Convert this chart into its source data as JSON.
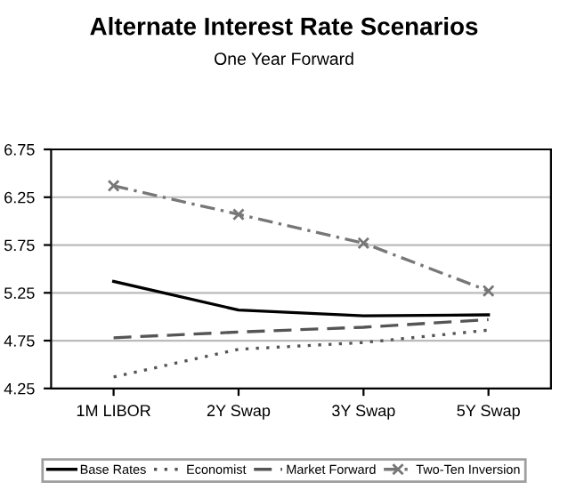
{
  "chart_data": {
    "type": "line",
    "title": "Alternate Interest Rate Scenarios",
    "subtitle": "One Year Forward",
    "categories": [
      "1M LIBOR",
      "2Y Swap",
      "3Y Swap",
      "5Y Swap"
    ],
    "series": [
      {
        "name": "Base Rates",
        "color": "#000000",
        "line_style": "solid",
        "marker": "none",
        "values": [
          5.37,
          5.07,
          5.01,
          5.02
        ]
      },
      {
        "name": "Economist",
        "color": "#555555",
        "line_style": "dotted",
        "marker": "none",
        "values": [
          4.37,
          4.66,
          4.73,
          4.86
        ]
      },
      {
        "name": "Market Forward",
        "color": "#555555",
        "line_style": "dashed",
        "marker": "none",
        "values": [
          4.78,
          4.84,
          4.89,
          4.97
        ]
      },
      {
        "name": "Two-Ten Inversion",
        "color": "#777777",
        "line_style": "dashdot",
        "marker": "cross",
        "values": [
          6.37,
          6.07,
          5.77,
          5.27
        ]
      }
    ],
    "ylim": [
      4.25,
      6.75
    ],
    "yticks": [
      4.25,
      4.75,
      5.25,
      5.75,
      6.25,
      6.75
    ],
    "grid": "y",
    "legend": "bottom"
  }
}
